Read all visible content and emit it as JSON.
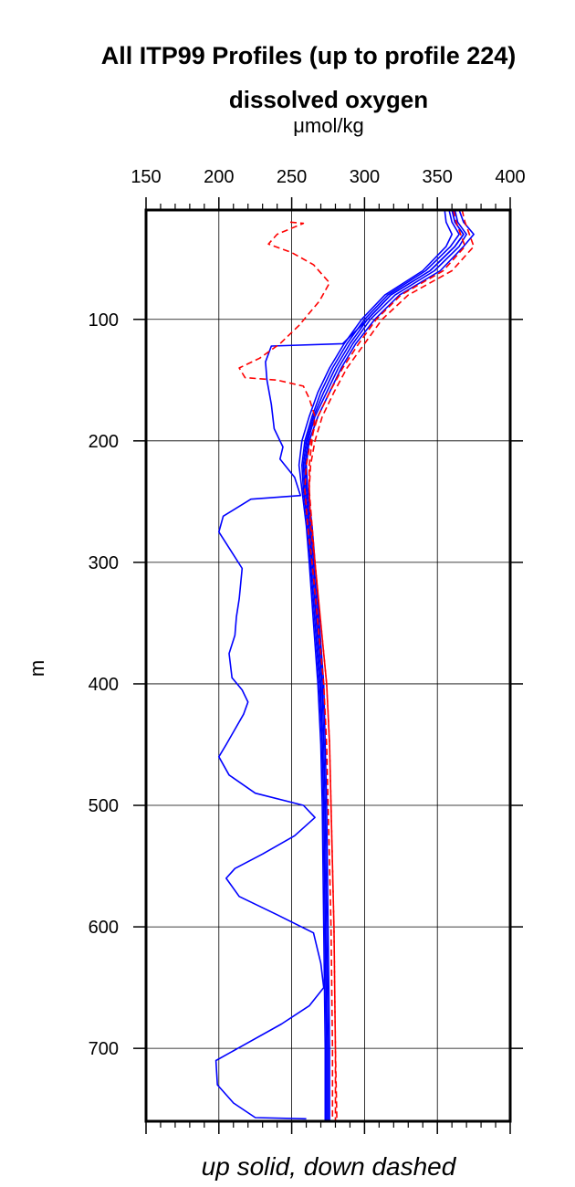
{
  "chart_data": {
    "type": "line",
    "title": "All ITP99 Profiles (up to profile 224)",
    "subtitle": "dissolved oxygen",
    "xlabel": "μmol/kg",
    "ylabel": "m",
    "caption": "up solid, down dashed",
    "xlim": [
      150,
      400
    ],
    "ylim": [
      760,
      10
    ],
    "x_ticks": [
      "150",
      "200",
      "250",
      "300",
      "350",
      "400"
    ],
    "y_ticks": [
      "100",
      "200",
      "300",
      "400",
      "500",
      "600",
      "700"
    ],
    "grid": true,
    "colors": {
      "up": "#0000ff",
      "down": "#ff0000"
    },
    "series": [
      {
        "role": "up",
        "style": "solid",
        "points": [
          [
            360,
            10
          ],
          [
            362,
            20
          ],
          [
            368,
            30
          ],
          [
            362,
            40
          ],
          [
            345,
            60
          ],
          [
            318,
            80
          ],
          [
            302,
            100
          ],
          [
            290,
            120
          ],
          [
            280,
            140
          ],
          [
            272,
            160
          ],
          [
            265,
            180
          ],
          [
            260,
            200
          ],
          [
            258,
            220
          ],
          [
            259,
            240
          ],
          [
            262,
            270
          ],
          [
            264,
            300
          ],
          [
            267,
            350
          ],
          [
            270,
            400
          ],
          [
            271,
            450
          ],
          [
            272,
            500
          ],
          [
            273,
            600
          ],
          [
            274,
            700
          ],
          [
            274,
            760
          ]
        ]
      },
      {
        "role": "up",
        "style": "solid",
        "points": [
          [
            365,
            10
          ],
          [
            368,
            20
          ],
          [
            375,
            30
          ],
          [
            368,
            40
          ],
          [
            352,
            60
          ],
          [
            324,
            80
          ],
          [
            307,
            100
          ],
          [
            294,
            120
          ],
          [
            284,
            140
          ],
          [
            276,
            160
          ],
          [
            268,
            180
          ],
          [
            262,
            200
          ],
          [
            260,
            220
          ],
          [
            261,
            240
          ],
          [
            264,
            270
          ],
          [
            266,
            300
          ],
          [
            269,
            350
          ],
          [
            272,
            400
          ],
          [
            273,
            450
          ],
          [
            274,
            500
          ],
          [
            275,
            600
          ],
          [
            276,
            700
          ],
          [
            276,
            760
          ]
        ]
      },
      {
        "role": "up",
        "style": "solid",
        "points": [
          [
            355,
            10
          ],
          [
            356,
            20
          ],
          [
            360,
            30
          ],
          [
            356,
            40
          ],
          [
            340,
            60
          ],
          [
            314,
            80
          ],
          [
            298,
            100
          ],
          [
            286,
            120
          ],
          [
            276,
            140
          ],
          [
            268,
            160
          ],
          [
            262,
            180
          ],
          [
            257,
            200
          ],
          [
            255,
            220
          ],
          [
            257,
            240
          ],
          [
            260,
            270
          ],
          [
            262,
            300
          ],
          [
            265,
            350
          ],
          [
            268,
            400
          ],
          [
            270,
            450
          ],
          [
            271,
            500
          ],
          [
            272,
            600
          ],
          [
            273,
            700
          ],
          [
            273,
            760
          ]
        ]
      },
      {
        "role": "up",
        "style": "solid",
        "points": [
          [
            362,
            10
          ],
          [
            364,
            20
          ],
          [
            370,
            30
          ],
          [
            365,
            40
          ],
          [
            348,
            60
          ],
          [
            321,
            80
          ],
          [
            304,
            100
          ],
          [
            292,
            120
          ],
          [
            282,
            140
          ],
          [
            274,
            160
          ],
          [
            266,
            180
          ],
          [
            261,
            200
          ],
          [
            259,
            220
          ],
          [
            260,
            240
          ],
          [
            263,
            270
          ],
          [
            265,
            300
          ],
          [
            268,
            350
          ],
          [
            271,
            400
          ],
          [
            272,
            450
          ],
          [
            273,
            500
          ],
          [
            274,
            600
          ],
          [
            275,
            700
          ],
          [
            275,
            760
          ]
        ]
      },
      {
        "role": "up",
        "style": "solid",
        "points": [
          [
            358,
            10
          ],
          [
            360,
            20
          ],
          [
            365,
            30
          ],
          [
            359,
            40
          ],
          [
            342,
            60
          ],
          [
            316,
            80
          ],
          [
            300,
            100
          ],
          [
            288,
            120
          ],
          [
            278,
            140
          ],
          [
            270,
            160
          ],
          [
            264,
            180
          ],
          [
            259,
            200
          ],
          [
            257,
            220
          ],
          [
            258,
            240
          ],
          [
            261,
            270
          ],
          [
            263,
            300
          ],
          [
            266,
            350
          ],
          [
            269,
            400
          ],
          [
            271,
            450
          ],
          [
            272,
            500
          ],
          [
            273,
            600
          ],
          [
            274,
            700
          ],
          [
            274,
            760
          ]
        ]
      },
      {
        "role": "up",
        "style": "solid",
        "points": [
          [
            360,
            10
          ],
          [
            362,
            20
          ],
          [
            368,
            30
          ],
          [
            362,
            40
          ],
          [
            345,
            60
          ],
          [
            318,
            80
          ],
          [
            302,
            100
          ],
          [
            285,
            120
          ],
          [
            236,
            122
          ],
          [
            232,
            135
          ],
          [
            233,
            150
          ],
          [
            236,
            170
          ],
          [
            238,
            190
          ],
          [
            244,
            205
          ],
          [
            242,
            215
          ],
          [
            252,
            230
          ],
          [
            256,
            245
          ],
          [
            222,
            248
          ],
          [
            203,
            262
          ],
          [
            200,
            275
          ],
          [
            208,
            290
          ],
          [
            216,
            305
          ],
          [
            214,
            330
          ],
          [
            212,
            345
          ],
          [
            211,
            360
          ],
          [
            207,
            375
          ],
          [
            209,
            395
          ],
          [
            216,
            405
          ],
          [
            220,
            415
          ],
          [
            217,
            425
          ],
          [
            205,
            450
          ],
          [
            200,
            460
          ],
          [
            207,
            475
          ],
          [
            225,
            490
          ],
          [
            258,
            500
          ],
          [
            266,
            510
          ],
          [
            252,
            525
          ],
          [
            230,
            540
          ],
          [
            211,
            552
          ],
          [
            205,
            560
          ],
          [
            214,
            575
          ],
          [
            240,
            590
          ],
          [
            265,
            605
          ],
          [
            270,
            630
          ],
          [
            272,
            650
          ],
          [
            262,
            665
          ],
          [
            243,
            680
          ],
          [
            213,
            700
          ],
          [
            198,
            710
          ],
          [
            199,
            730
          ],
          [
            210,
            745
          ],
          [
            225,
            757
          ],
          [
            260,
            758
          ]
        ]
      },
      {
        "role": "down",
        "style": "dashed",
        "points": [
          [
            367,
            10
          ],
          [
            369,
            20
          ],
          [
            372,
            30
          ],
          [
            375,
            40
          ],
          [
            360,
            60
          ],
          [
            330,
            80
          ],
          [
            312,
            100
          ],
          [
            300,
            120
          ],
          [
            288,
            140
          ],
          [
            279,
            160
          ],
          [
            271,
            180
          ],
          [
            266,
            200
          ],
          [
            263,
            220
          ],
          [
            262,
            240
          ],
          [
            263,
            270
          ],
          [
            266,
            300
          ],
          [
            270,
            350
          ],
          [
            274,
            400
          ],
          [
            276,
            450
          ],
          [
            277,
            500
          ],
          [
            279,
            600
          ],
          [
            280,
            700
          ],
          [
            280,
            760
          ]
        ]
      },
      {
        "role": "down",
        "style": "dashed",
        "points": [
          [
            361,
            10
          ],
          [
            363,
            20
          ],
          [
            366,
            30
          ],
          [
            369,
            40
          ],
          [
            354,
            60
          ],
          [
            325,
            80
          ],
          [
            308,
            100
          ],
          [
            296,
            120
          ],
          [
            285,
            140
          ],
          [
            276,
            160
          ],
          [
            268,
            180
          ],
          [
            263,
            200
          ],
          [
            260,
            220
          ],
          [
            259,
            240
          ],
          [
            261,
            270
          ],
          [
            264,
            300
          ],
          [
            268,
            350
          ],
          [
            272,
            400
          ],
          [
            274,
            450
          ],
          [
            275,
            500
          ],
          [
            277,
            600
          ],
          [
            278,
            700
          ],
          [
            278,
            760
          ]
        ]
      },
      {
        "role": "down",
        "style": "dashed",
        "points": [
          [
            249,
            20
          ],
          [
            258,
            21
          ],
          [
            240,
            30
          ],
          [
            234,
            38
          ],
          [
            250,
            45
          ],
          [
            265,
            55
          ],
          [
            276,
            70
          ],
          [
            269,
            85
          ],
          [
            255,
            105
          ],
          [
            242,
            120
          ],
          [
            228,
            132
          ],
          [
            214,
            140
          ],
          [
            218,
            148
          ],
          [
            240,
            150
          ],
          [
            258,
            155
          ],
          [
            262,
            165
          ],
          [
            266,
            180
          ],
          [
            264,
            200
          ],
          [
            262,
            220
          ],
          [
            262,
            240
          ],
          [
            264,
            270
          ],
          [
            266,
            300
          ],
          [
            270,
            350
          ],
          [
            274,
            400
          ],
          [
            276,
            450
          ],
          [
            277,
            500
          ],
          [
            279,
            600
          ],
          [
            280,
            700
          ],
          [
            281,
            760
          ]
        ]
      }
    ]
  }
}
